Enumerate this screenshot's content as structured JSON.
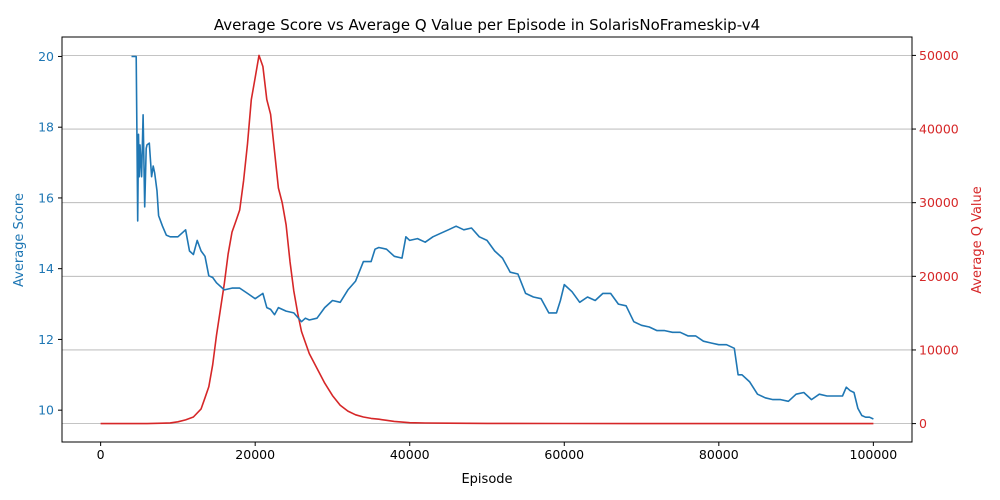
{
  "chart_data": {
    "type": "line",
    "title": "Average Score vs Average Q Value per Episode in SolarisNoFrameskip-v4",
    "xlabel": "Episode",
    "xlim": [
      -5000,
      105000
    ],
    "xticks": [
      0,
      20000,
      40000,
      60000,
      80000,
      100000
    ],
    "left_axis": {
      "label": "Average Score",
      "color": "#1f77b4",
      "ylim": [
        9.1,
        20.55
      ],
      "ticks": [
        10,
        12,
        14,
        16,
        18,
        20
      ]
    },
    "right_axis": {
      "label": "Average Q Value",
      "color": "#d62728",
      "ylim": [
        -2500,
        52500
      ],
      "ticks": [
        0,
        10000,
        20000,
        30000,
        40000,
        50000
      ]
    },
    "grid": "horizontal-right-axis",
    "series": [
      {
        "axis": "left",
        "color": "#1f77b4",
        "x": [
          4000,
          4600,
          4700,
          4800,
          4900,
          5000,
          5100,
          5300,
          5500,
          5700,
          5900,
          6000,
          6300,
          6600,
          6800,
          7000,
          7300,
          7500,
          8000,
          8500,
          9000,
          10000,
          11000,
          11500,
          12000,
          12500,
          13000,
          13500,
          14000,
          14500,
          15000,
          16000,
          17000,
          18000,
          19000,
          20000,
          21000,
          21500,
          22000,
          22500,
          23000,
          24000,
          25000,
          26000,
          26500,
          27000,
          28000,
          29000,
          30000,
          31000,
          32000,
          33000,
          34000,
          35000,
          35500,
          36000,
          37000,
          38000,
          39000,
          39500,
          40000,
          41000,
          42000,
          43000,
          44000,
          45000,
          46000,
          47000,
          48000,
          49000,
          50000,
          51000,
          52000,
          53000,
          54000,
          55000,
          56000,
          57000,
          58000,
          59000,
          59500,
          60000,
          61000,
          62000,
          63000,
          64000,
          65000,
          66000,
          67000,
          68000,
          69000,
          70000,
          71000,
          72000,
          73000,
          74000,
          75000,
          76000,
          77000,
          78000,
          79000,
          80000,
          81000,
          82000,
          82500,
          83000,
          84000,
          85000,
          86000,
          87000,
          88000,
          89000,
          90000,
          91000,
          92000,
          93000,
          94000,
          95000,
          96000,
          96500,
          97000,
          97500,
          98000,
          98500,
          99000,
          99500,
          100000
        ],
        "values": [
          20.0,
          20.0,
          17.6,
          15.35,
          17.8,
          16.6,
          17.5,
          16.6,
          18.35,
          15.75,
          17.4,
          17.5,
          17.55,
          16.6,
          16.9,
          16.7,
          16.2,
          15.5,
          15.2,
          14.95,
          14.9,
          14.9,
          15.1,
          14.5,
          14.4,
          14.8,
          14.5,
          14.35,
          13.8,
          13.75,
          13.6,
          13.4,
          13.45,
          13.45,
          13.3,
          13.15,
          13.3,
          12.9,
          12.85,
          12.7,
          12.9,
          12.8,
          12.75,
          12.5,
          12.6,
          12.55,
          12.6,
          12.9,
          13.1,
          13.05,
          13.4,
          13.65,
          14.2,
          14.2,
          14.55,
          14.6,
          14.55,
          14.35,
          14.3,
          14.9,
          14.8,
          14.85,
          14.75,
          14.9,
          15.0,
          15.1,
          15.2,
          15.1,
          15.15,
          14.9,
          14.8,
          14.5,
          14.3,
          13.9,
          13.85,
          13.3,
          13.2,
          13.15,
          12.75,
          12.75,
          13.1,
          13.55,
          13.35,
          13.05,
          13.2,
          13.1,
          13.3,
          13.3,
          13.0,
          12.95,
          12.5,
          12.4,
          12.35,
          12.25,
          12.25,
          12.2,
          12.2,
          12.1,
          12.1,
          11.95,
          11.9,
          11.85,
          11.85,
          11.75,
          11.0,
          11.0,
          10.8,
          10.45,
          10.35,
          10.3,
          10.3,
          10.25,
          10.45,
          10.5,
          10.3,
          10.45,
          10.4,
          10.4,
          10.4,
          10.65,
          10.55,
          10.5,
          10.05,
          9.85,
          9.8,
          9.8,
          9.75
        ]
      },
      {
        "axis": "right",
        "color": "#d62728",
        "x": [
          0,
          2000,
          4000,
          6000,
          8000,
          9000,
          10000,
          11000,
          12000,
          13000,
          13500,
          14000,
          14500,
          15000,
          15500,
          16000,
          16500,
          17000,
          17500,
          18000,
          18500,
          19000,
          19500,
          20000,
          20500,
          21000,
          21500,
          22000,
          22500,
          23000,
          23500,
          24000,
          24500,
          25000,
          25500,
          26000,
          26500,
          27000,
          28000,
          29000,
          30000,
          31000,
          32000,
          33000,
          34000,
          35000,
          36000,
          37000,
          38000,
          39000,
          40000,
          42000,
          45000,
          50000,
          60000,
          70000,
          80000,
          90000,
          100000
        ],
        "values": [
          0,
          0,
          0,
          0,
          50,
          100,
          250,
          500,
          900,
          2000,
          3500,
          5000,
          8000,
          12000,
          15500,
          19000,
          23000,
          26000,
          27500,
          29000,
          33000,
          38000,
          44000,
          47000,
          50000,
          48500,
          44000,
          42000,
          37000,
          32000,
          30000,
          27000,
          22000,
          18000,
          15000,
          12500,
          11000,
          9500,
          7500,
          5500,
          3800,
          2500,
          1700,
          1200,
          900,
          700,
          600,
          450,
          300,
          200,
          120,
          80,
          50,
          30,
          10,
          5,
          0,
          0,
          0
        ]
      }
    ]
  }
}
